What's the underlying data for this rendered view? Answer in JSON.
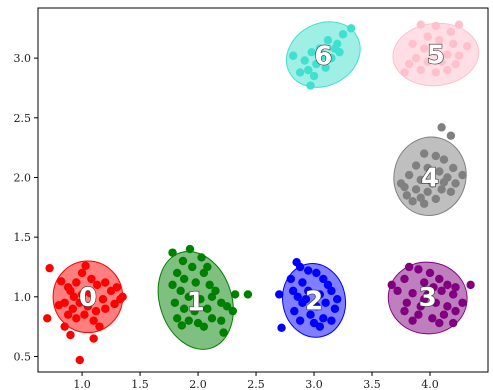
{
  "chart_data": {
    "type": "scatter",
    "title": "",
    "xlabel": "",
    "ylabel": "",
    "xlim": [
      0.62,
      4.5
    ],
    "ylim": [
      0.37,
      3.42
    ],
    "xticks": [
      "1.0",
      "1.5",
      "2.0",
      "2.5",
      "3.0",
      "3.5",
      "4.0"
    ],
    "xtick_values": [
      1.0,
      1.5,
      2.0,
      2.5,
      3.0,
      3.5,
      4.0
    ],
    "yticks": [
      "0.5",
      "1.0",
      "1.5",
      "2.0",
      "2.5",
      "3.0"
    ],
    "ytick_values": [
      0.5,
      1.0,
      1.5,
      2.0,
      2.5,
      3.0
    ],
    "grid": false,
    "clusters": [
      {
        "label": "0",
        "color": "#ff0000",
        "center": [
          1.05,
          1.0
        ],
        "ellipse": {
          "cx": 1.05,
          "cy": 1.0,
          "rx": 0.3,
          "ry": 0.3,
          "angle": 0
        },
        "points": [
          [
            0.72,
            1.24
          ],
          [
            0.82,
            1.13
          ],
          [
            0.88,
            1.08
          ],
          [
            0.95,
            1.12
          ],
          [
            1.0,
            1.2
          ],
          [
            1.03,
            1.26
          ],
          [
            1.08,
            1.15
          ],
          [
            1.13,
            1.1
          ],
          [
            1.2,
            1.12
          ],
          [
            1.25,
            1.05
          ],
          [
            1.3,
            1.08
          ],
          [
            1.33,
            0.98
          ],
          [
            1.35,
            1.0
          ],
          [
            1.28,
            0.94
          ],
          [
            1.2,
            0.9
          ],
          [
            1.12,
            0.88
          ],
          [
            1.05,
            0.92
          ],
          [
            0.98,
            0.95
          ],
          [
            0.92,
            0.9
          ],
          [
            0.85,
            0.95
          ],
          [
            0.8,
            0.93
          ],
          [
            0.88,
            0.85
          ],
          [
            0.95,
            0.82
          ],
          [
            1.02,
            0.85
          ],
          [
            1.1,
            0.8
          ],
          [
            1.15,
            0.75
          ],
          [
            1.1,
            0.65
          ],
          [
            0.9,
            0.68
          ],
          [
            0.85,
            0.75
          ],
          [
            0.7,
            0.82
          ],
          [
            0.98,
            0.47
          ],
          [
            1.0,
            1.02
          ],
          [
            1.07,
            1.03
          ],
          [
            0.93,
            1.0
          ],
          [
            1.18,
            0.98
          ],
          [
            0.9,
            1.05
          ]
        ]
      },
      {
        "label": "1",
        "color": "#008000",
        "center": [
          1.98,
          0.96
        ],
        "ellipse": {
          "cx": 1.98,
          "cy": 0.97,
          "rx": 0.31,
          "ry": 0.42,
          "angle": -18
        },
        "points": [
          [
            1.78,
            1.37
          ],
          [
            1.93,
            1.4
          ],
          [
            2.03,
            1.33
          ],
          [
            1.87,
            1.3
          ],
          [
            1.95,
            1.25
          ],
          [
            2.05,
            1.2
          ],
          [
            1.82,
            1.2
          ],
          [
            1.88,
            1.15
          ],
          [
            1.98,
            1.12
          ],
          [
            2.1,
            1.1
          ],
          [
            2.15,
            1.05
          ],
          [
            1.85,
            1.05
          ],
          [
            1.92,
            1.0
          ],
          [
            2.02,
            0.98
          ],
          [
            2.12,
            1.0
          ],
          [
            2.2,
            0.95
          ],
          [
            1.8,
            0.95
          ],
          [
            1.88,
            0.9
          ],
          [
            1.97,
            0.88
          ],
          [
            2.08,
            0.9
          ],
          [
            2.25,
            0.92
          ],
          [
            2.3,
            0.88
          ],
          [
            1.82,
            0.82
          ],
          [
            1.92,
            0.8
          ],
          [
            2.0,
            0.78
          ],
          [
            2.12,
            0.82
          ],
          [
            2.2,
            0.8
          ],
          [
            1.86,
            0.76
          ],
          [
            2.05,
            0.75
          ],
          [
            2.22,
            0.7
          ],
          [
            2.32,
            1.02
          ],
          [
            2.43,
            1.02
          ],
          [
            1.78,
            1.1
          ],
          [
            2.08,
            1.25
          ]
        ]
      },
      {
        "label": "2",
        "color": "#0000ff",
        "center": [
          3.0,
          0.97
        ],
        "ellipse": {
          "cx": 3.0,
          "cy": 0.97,
          "rx": 0.27,
          "ry": 0.31,
          "angle": -10
        },
        "points": [
          [
            2.85,
            1.29
          ],
          [
            2.88,
            1.25
          ],
          [
            2.95,
            1.22
          ],
          [
            3.02,
            1.2
          ],
          [
            2.8,
            1.15
          ],
          [
            2.9,
            1.12
          ],
          [
            3.08,
            1.15
          ],
          [
            3.12,
            1.1
          ],
          [
            2.82,
            1.05
          ],
          [
            2.95,
            1.05
          ],
          [
            3.05,
            1.02
          ],
          [
            3.15,
            1.05
          ],
          [
            2.7,
            1.02
          ],
          [
            2.9,
            0.95
          ],
          [
            3.02,
            0.92
          ],
          [
            3.1,
            0.95
          ],
          [
            3.18,
            0.9
          ],
          [
            2.83,
            0.88
          ],
          [
            2.97,
            0.85
          ],
          [
            3.08,
            0.82
          ],
          [
            3.15,
            0.8
          ],
          [
            2.88,
            0.8
          ],
          [
            3.0,
            0.78
          ],
          [
            2.72,
            0.74
          ],
          [
            3.05,
            0.75
          ],
          [
            2.93,
            0.98
          ],
          [
            3.2,
            0.98
          ],
          [
            2.86,
            1.0
          ]
        ]
      },
      {
        "label": "3",
        "color": "#800080",
        "center": [
          3.98,
          1.0
        ],
        "ellipse": {
          "cx": 3.98,
          "cy": 0.99,
          "rx": 0.34,
          "ry": 0.3,
          "angle": 5
        },
        "points": [
          [
            3.82,
            1.25
          ],
          [
            3.9,
            1.23
          ],
          [
            4.0,
            1.2
          ],
          [
            3.78,
            1.15
          ],
          [
            3.95,
            1.12
          ],
          [
            4.08,
            1.15
          ],
          [
            4.15,
            1.1
          ],
          [
            4.22,
            1.08
          ],
          [
            3.72,
            1.05
          ],
          [
            3.85,
            1.03
          ],
          [
            3.98,
            1.02
          ],
          [
            4.1,
            1.05
          ],
          [
            4.2,
            1.02
          ],
          [
            4.35,
            1.1
          ],
          [
            3.67,
            1.1
          ],
          [
            3.8,
            0.95
          ],
          [
            3.92,
            0.92
          ],
          [
            4.05,
            0.95
          ],
          [
            4.15,
            0.92
          ],
          [
            4.28,
            0.95
          ],
          [
            3.78,
            0.88
          ],
          [
            3.9,
            0.85
          ],
          [
            4.02,
            0.82
          ],
          [
            4.12,
            0.85
          ],
          [
            4.22,
            0.88
          ],
          [
            3.85,
            0.8
          ],
          [
            4.08,
            0.78
          ],
          [
            4.2,
            0.78
          ],
          [
            3.95,
            0.98
          ],
          [
            4.03,
            1.08
          ]
        ]
      },
      {
        "label": "4",
        "color": "#808080",
        "center": [
          4.0,
          2.0
        ],
        "ellipse": {
          "cx": 4.0,
          "cy": 2.01,
          "rx": 0.31,
          "ry": 0.33,
          "angle": 12
        },
        "points": [
          [
            4.1,
            2.42
          ],
          [
            4.18,
            2.35
          ],
          [
            3.95,
            2.2
          ],
          [
            4.05,
            2.18
          ],
          [
            4.12,
            2.15
          ],
          [
            3.88,
            2.1
          ],
          [
            3.98,
            2.08
          ],
          [
            4.08,
            2.05
          ],
          [
            4.2,
            2.08
          ],
          [
            4.28,
            2.02
          ],
          [
            3.82,
            2.02
          ],
          [
            3.92,
            1.98
          ],
          [
            4.02,
            1.95
          ],
          [
            4.12,
            1.96
          ],
          [
            4.22,
            1.95
          ],
          [
            3.78,
            1.92
          ],
          [
            3.88,
            1.9
          ],
          [
            3.98,
            1.88
          ],
          [
            4.1,
            1.9
          ],
          [
            4.18,
            1.88
          ],
          [
            3.8,
            1.85
          ],
          [
            3.92,
            1.83
          ],
          [
            4.05,
            1.82
          ],
          [
            3.95,
            1.78
          ],
          [
            3.85,
            1.8
          ],
          [
            3.75,
            1.95
          ],
          [
            4.15,
            2.0
          ]
        ]
      },
      {
        "label": "5",
        "color": "#ffc0cb",
        "center": [
          4.05,
          3.03
        ],
        "ellipse": {
          "cx": 4.05,
          "cy": 3.03,
          "rx": 0.37,
          "ry": 0.26,
          "angle": -5
        },
        "points": [
          [
            3.92,
            3.28
          ],
          [
            4.05,
            3.27
          ],
          [
            4.25,
            3.28
          ],
          [
            4.18,
            3.22
          ],
          [
            3.98,
            3.18
          ],
          [
            4.08,
            3.15
          ],
          [
            4.2,
            3.12
          ],
          [
            4.32,
            3.1
          ],
          [
            3.85,
            3.12
          ],
          [
            3.95,
            3.08
          ],
          [
            4.05,
            3.05
          ],
          [
            4.15,
            3.03
          ],
          [
            4.25,
            3.02
          ],
          [
            3.88,
            3.0
          ],
          [
            3.98,
            2.97
          ],
          [
            4.1,
            2.97
          ],
          [
            4.22,
            2.95
          ],
          [
            3.82,
            2.95
          ],
          [
            3.92,
            2.9
          ],
          [
            4.05,
            2.88
          ],
          [
            4.15,
            2.9
          ],
          [
            3.78,
            2.88
          ]
        ]
      },
      {
        "label": "6",
        "color": "#40e0d0",
        "center": [
          3.08,
          3.02
        ],
        "ellipse": {
          "cx": 3.08,
          "cy": 3.03,
          "rx": 0.33,
          "ry": 0.26,
          "angle": -28
        },
        "points": [
          [
            3.32,
            3.25
          ],
          [
            3.25,
            3.2
          ],
          [
            3.12,
            3.15
          ],
          [
            3.2,
            3.12
          ],
          [
            3.05,
            3.08
          ],
          [
            3.18,
            3.08
          ],
          [
            2.98,
            3.05
          ],
          [
            3.08,
            3.02
          ],
          [
            3.15,
            3.0
          ],
          [
            2.82,
            3.02
          ],
          [
            2.92,
            2.98
          ],
          [
            3.02,
            2.95
          ],
          [
            2.95,
            2.9
          ],
          [
            3.1,
            2.92
          ],
          [
            3.0,
            2.85
          ],
          [
            2.88,
            2.88
          ],
          [
            2.97,
            2.77
          ],
          [
            3.22,
            3.05
          ]
        ]
      }
    ]
  }
}
